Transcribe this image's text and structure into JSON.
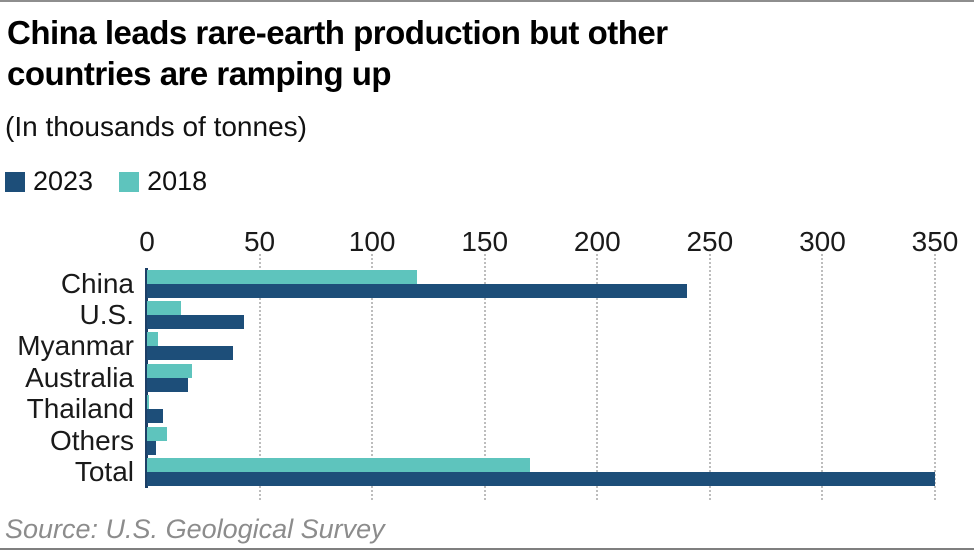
{
  "card": {
    "title_lines": [
      "China leads rare-earth production but other",
      "countries are ramping up"
    ]
  },
  "chart_data": {
    "type": "bar",
    "orientation": "horizontal",
    "title": "China leads rare-earth production but other countries are ramping up",
    "subtitle": "(In thousands of tonnes)",
    "unit": "thousands of tonnes",
    "categories": [
      "China",
      "U.S.",
      "Myanmar",
      "Australia",
      "Thailand",
      "Others",
      "Total"
    ],
    "series": [
      {
        "name": "2023",
        "color": "#1d4e79",
        "values": [
          240,
          43,
          38,
          18,
          7,
          4,
          350
        ]
      },
      {
        "name": "2018",
        "color": "#5ec4bd",
        "values": [
          120,
          15,
          5,
          20,
          1,
          9,
          170
        ]
      }
    ],
    "bar_order_top_to_bottom": [
      "2018",
      "2023"
    ],
    "x_ticks": [
      0,
      50,
      100,
      150,
      200,
      250,
      300,
      350
    ],
    "xlim": [
      0,
      350
    ],
    "grid": {
      "vertical": true,
      "style": "dotted",
      "color": "#bdbdbd"
    },
    "axis_line_color": "#1c3f66",
    "legend": {
      "position": "top-left",
      "items": [
        {
          "label": "2023",
          "color": "#1d4e79"
        },
        {
          "label": "2018",
          "color": "#5ec4bd"
        }
      ]
    },
    "source": "Source: U.S. Geological Survey"
  }
}
